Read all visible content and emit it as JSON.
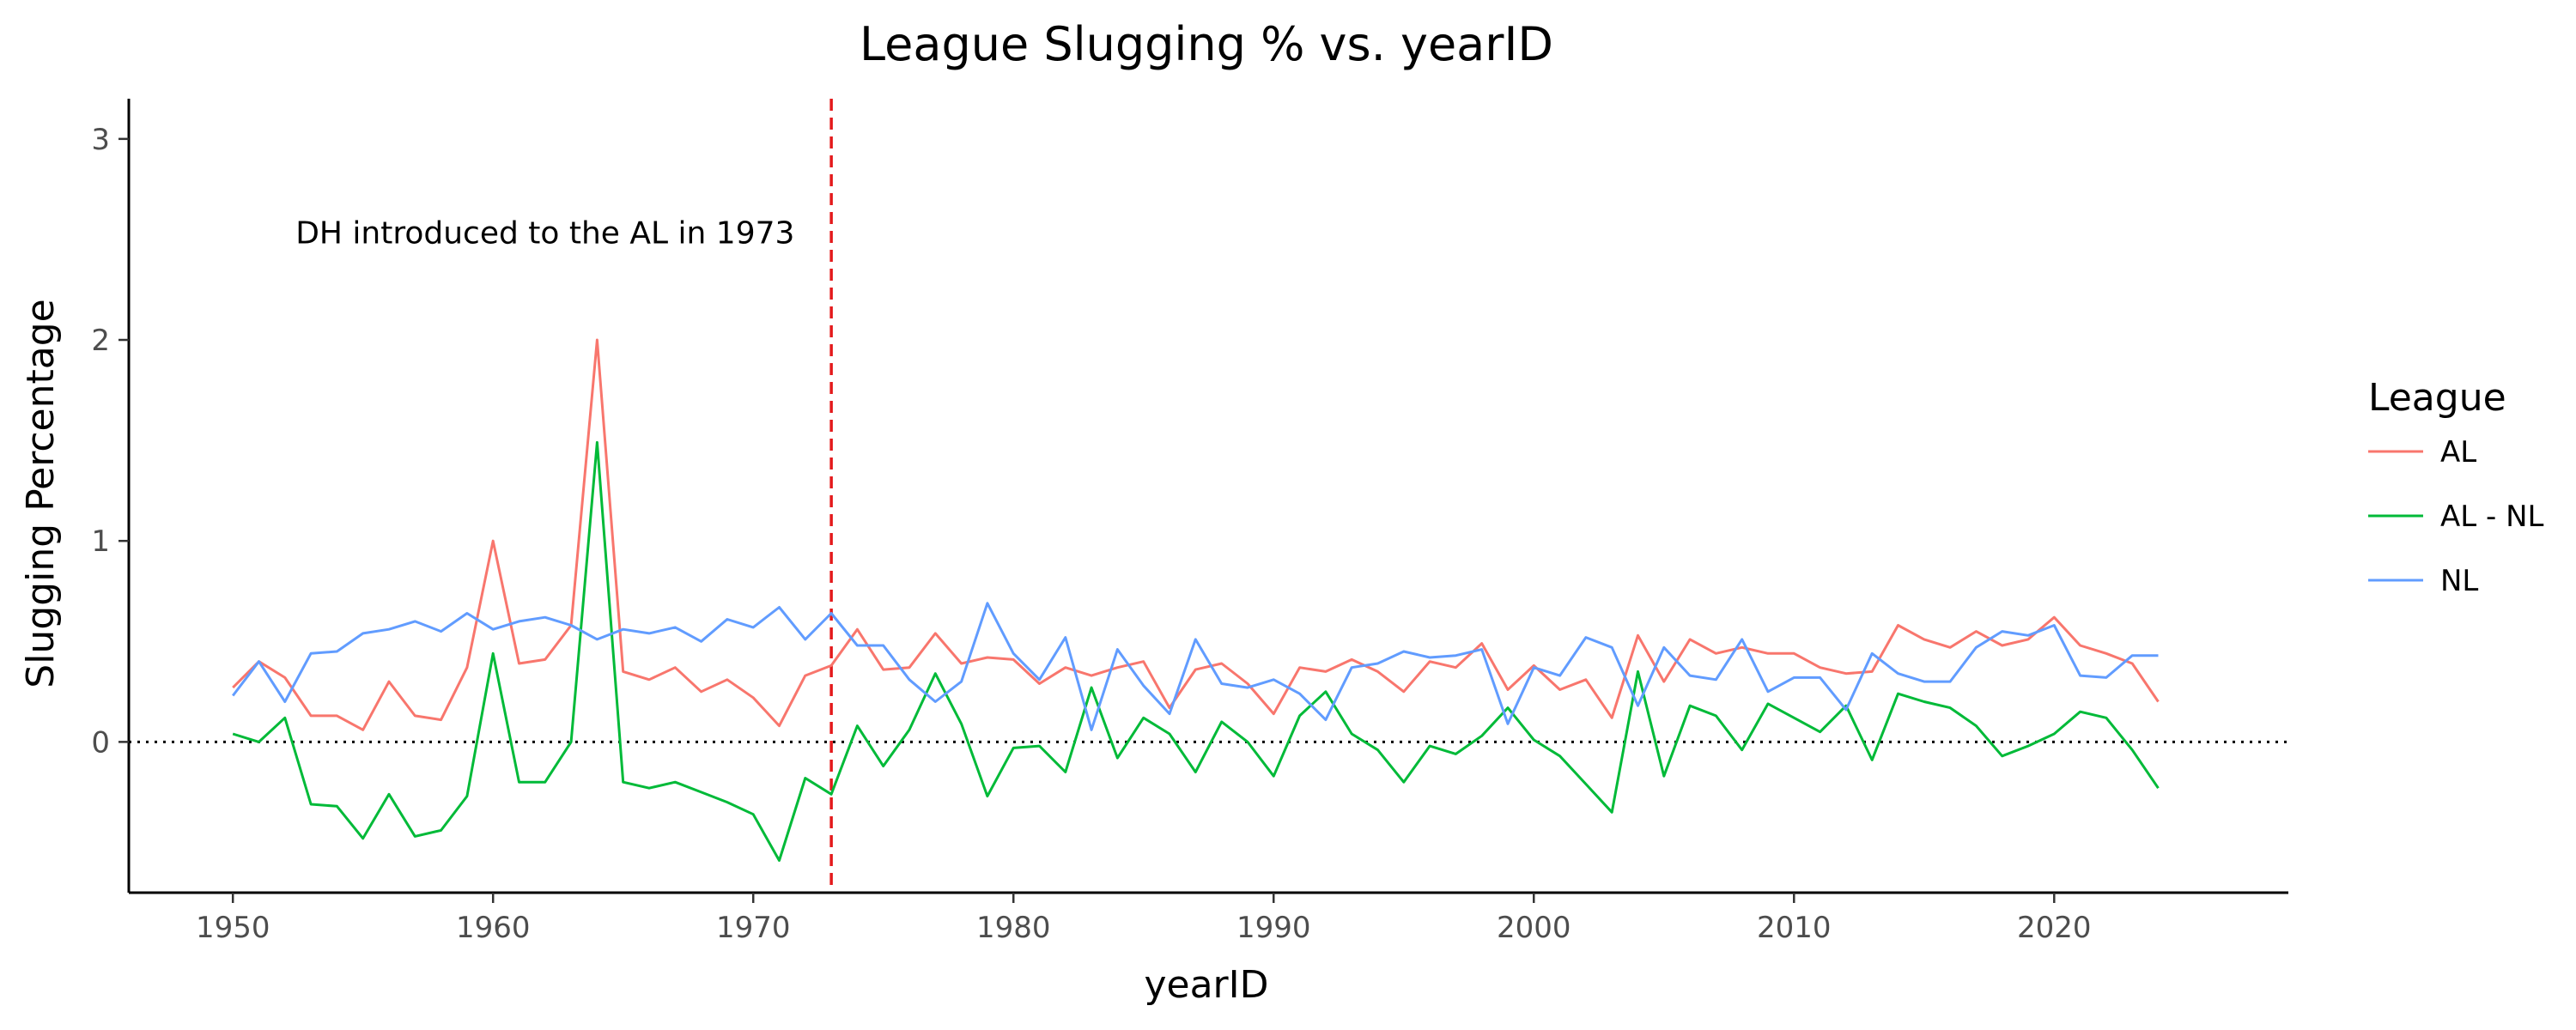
{
  "chart_data": {
    "type": "line",
    "title": "League Slugging % vs. yearID",
    "xlabel": "yearID",
    "ylabel": "Slugging Percentage",
    "xlim": [
      1946,
      2029
    ],
    "ylim": [
      -0.75,
      3.2
    ],
    "x_ticks": [
      1950,
      1960,
      1970,
      1980,
      1990,
      2000,
      2010,
      2020
    ],
    "y_ticks": [
      0,
      1,
      2,
      3
    ],
    "grid": false,
    "legend": {
      "title": "League",
      "placement": "right"
    },
    "reference_lines": [
      {
        "orientation": "vertical",
        "value": 1973,
        "style": "dashed",
        "color": "#e41a1c"
      },
      {
        "orientation": "horizontal",
        "value": 0,
        "style": "dotted",
        "color": "#000000"
      }
    ],
    "annotations": [
      {
        "text": "DH introduced to the AL in 1973",
        "x": 1962,
        "y": 2.48
      }
    ],
    "x": [
      1950,
      1951,
      1952,
      1953,
      1954,
      1955,
      1956,
      1957,
      1958,
      1959,
      1960,
      1961,
      1962,
      1963,
      1964,
      1965,
      1966,
      1967,
      1968,
      1969,
      1970,
      1971,
      1972,
      1973,
      1974,
      1975,
      1976,
      1977,
      1978,
      1979,
      1980,
      1981,
      1982,
      1983,
      1984,
      1985,
      1986,
      1987,
      1988,
      1989,
      1990,
      1991,
      1992,
      1993,
      1994,
      1995,
      1996,
      1997,
      1998,
      1999,
      2000,
      2001,
      2002,
      2003,
      2004,
      2005,
      2006,
      2007,
      2008,
      2009,
      2010,
      2011,
      2012,
      2013,
      2014,
      2015,
      2016,
      2017,
      2018,
      2019,
      2020,
      2021,
      2022,
      2023,
      2024
    ],
    "series": [
      {
        "name": "AL",
        "color": "#F8766D",
        "values": [
          0.27,
          0.4,
          0.32,
          0.13,
          0.13,
          0.06,
          0.3,
          0.13,
          0.11,
          0.37,
          1.0,
          0.39,
          0.41,
          0.58,
          2.0,
          0.35,
          0.31,
          0.37,
          0.25,
          0.31,
          0.22,
          0.08,
          0.33,
          0.38,
          0.56,
          0.36,
          0.37,
          0.54,
          0.39,
          0.42,
          0.41,
          0.29,
          0.37,
          0.33,
          0.37,
          0.4,
          0.17,
          0.36,
          0.39,
          0.29,
          0.14,
          0.37,
          0.35,
          0.41,
          0.35,
          0.25,
          0.4,
          0.37,
          0.49,
          0.26,
          0.38,
          0.26,
          0.31,
          0.12,
          0.53,
          0.3,
          0.51,
          0.44,
          0.47,
          0.44,
          0.44,
          0.37,
          0.34,
          0.35,
          0.58,
          0.51,
          0.47,
          0.55,
          0.48,
          0.51,
          0.62,
          0.48,
          0.44,
          0.39,
          0.2
        ]
      },
      {
        "name": "AL - NL",
        "color": "#00BA38",
        "values": [
          0.04,
          0.0,
          0.12,
          -0.31,
          -0.32,
          -0.48,
          -0.26,
          -0.47,
          -0.44,
          -0.27,
          0.44,
          -0.2,
          -0.2,
          0.0,
          1.49,
          -0.2,
          -0.23,
          -0.2,
          -0.25,
          -0.3,
          -0.36,
          -0.59,
          -0.18,
          -0.26,
          0.08,
          -0.12,
          0.06,
          0.34,
          0.09,
          -0.27,
          -0.03,
          -0.02,
          -0.15,
          0.27,
          -0.08,
          0.12,
          0.04,
          -0.15,
          0.1,
          0.0,
          -0.17,
          0.13,
          0.25,
          0.04,
          -0.04,
          -0.2,
          -0.02,
          -0.06,
          0.03,
          0.17,
          0.01,
          -0.07,
          -0.21,
          -0.35,
          0.35,
          -0.17,
          0.18,
          0.13,
          -0.04,
          0.19,
          0.12,
          0.05,
          0.18,
          -0.09,
          0.24,
          0.2,
          0.17,
          0.08,
          -0.07,
          -0.02,
          0.04,
          0.15,
          0.12,
          -0.04,
          -0.23
        ]
      },
      {
        "name": "NL",
        "color": "#619CFF",
        "values": [
          0.23,
          0.4,
          0.2,
          0.44,
          0.45,
          0.54,
          0.56,
          0.6,
          0.55,
          0.64,
          0.56,
          0.6,
          0.62,
          0.58,
          0.51,
          0.56,
          0.54,
          0.57,
          0.5,
          0.61,
          0.57,
          0.67,
          0.51,
          0.64,
          0.48,
          0.48,
          0.31,
          0.2,
          0.3,
          0.69,
          0.44,
          0.31,
          0.52,
          0.06,
          0.46,
          0.28,
          0.14,
          0.51,
          0.29,
          0.27,
          0.31,
          0.24,
          0.11,
          0.37,
          0.39,
          0.45,
          0.42,
          0.43,
          0.46,
          0.09,
          0.37,
          0.33,
          0.52,
          0.47,
          0.18,
          0.47,
          0.33,
          0.31,
          0.51,
          0.25,
          0.32,
          0.32,
          0.16,
          0.44,
          0.34,
          0.3,
          0.3,
          0.47,
          0.55,
          0.53,
          0.58,
          0.33,
          0.32,
          0.43,
          0.43
        ]
      }
    ]
  }
}
